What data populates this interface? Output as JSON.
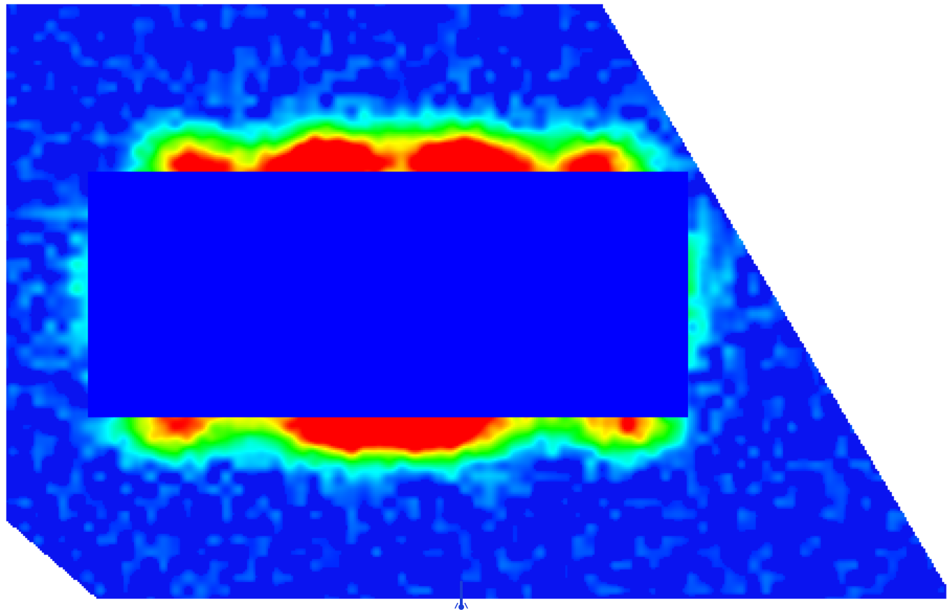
{
  "chart_data": {
    "type": "heatmap",
    "colormap": [
      "#0000ff",
      "#00ffff",
      "#00ff00",
      "#ffff00",
      "#ff0000"
    ],
    "background_color": "#ffffff",
    "floor_color": "#0a14f0",
    "obstacle_color": "#0000ff",
    "hotspot_peak_level": 1.0,
    "ring_peak_level": 0.55,
    "outer_halo_level": 0.3
  }
}
